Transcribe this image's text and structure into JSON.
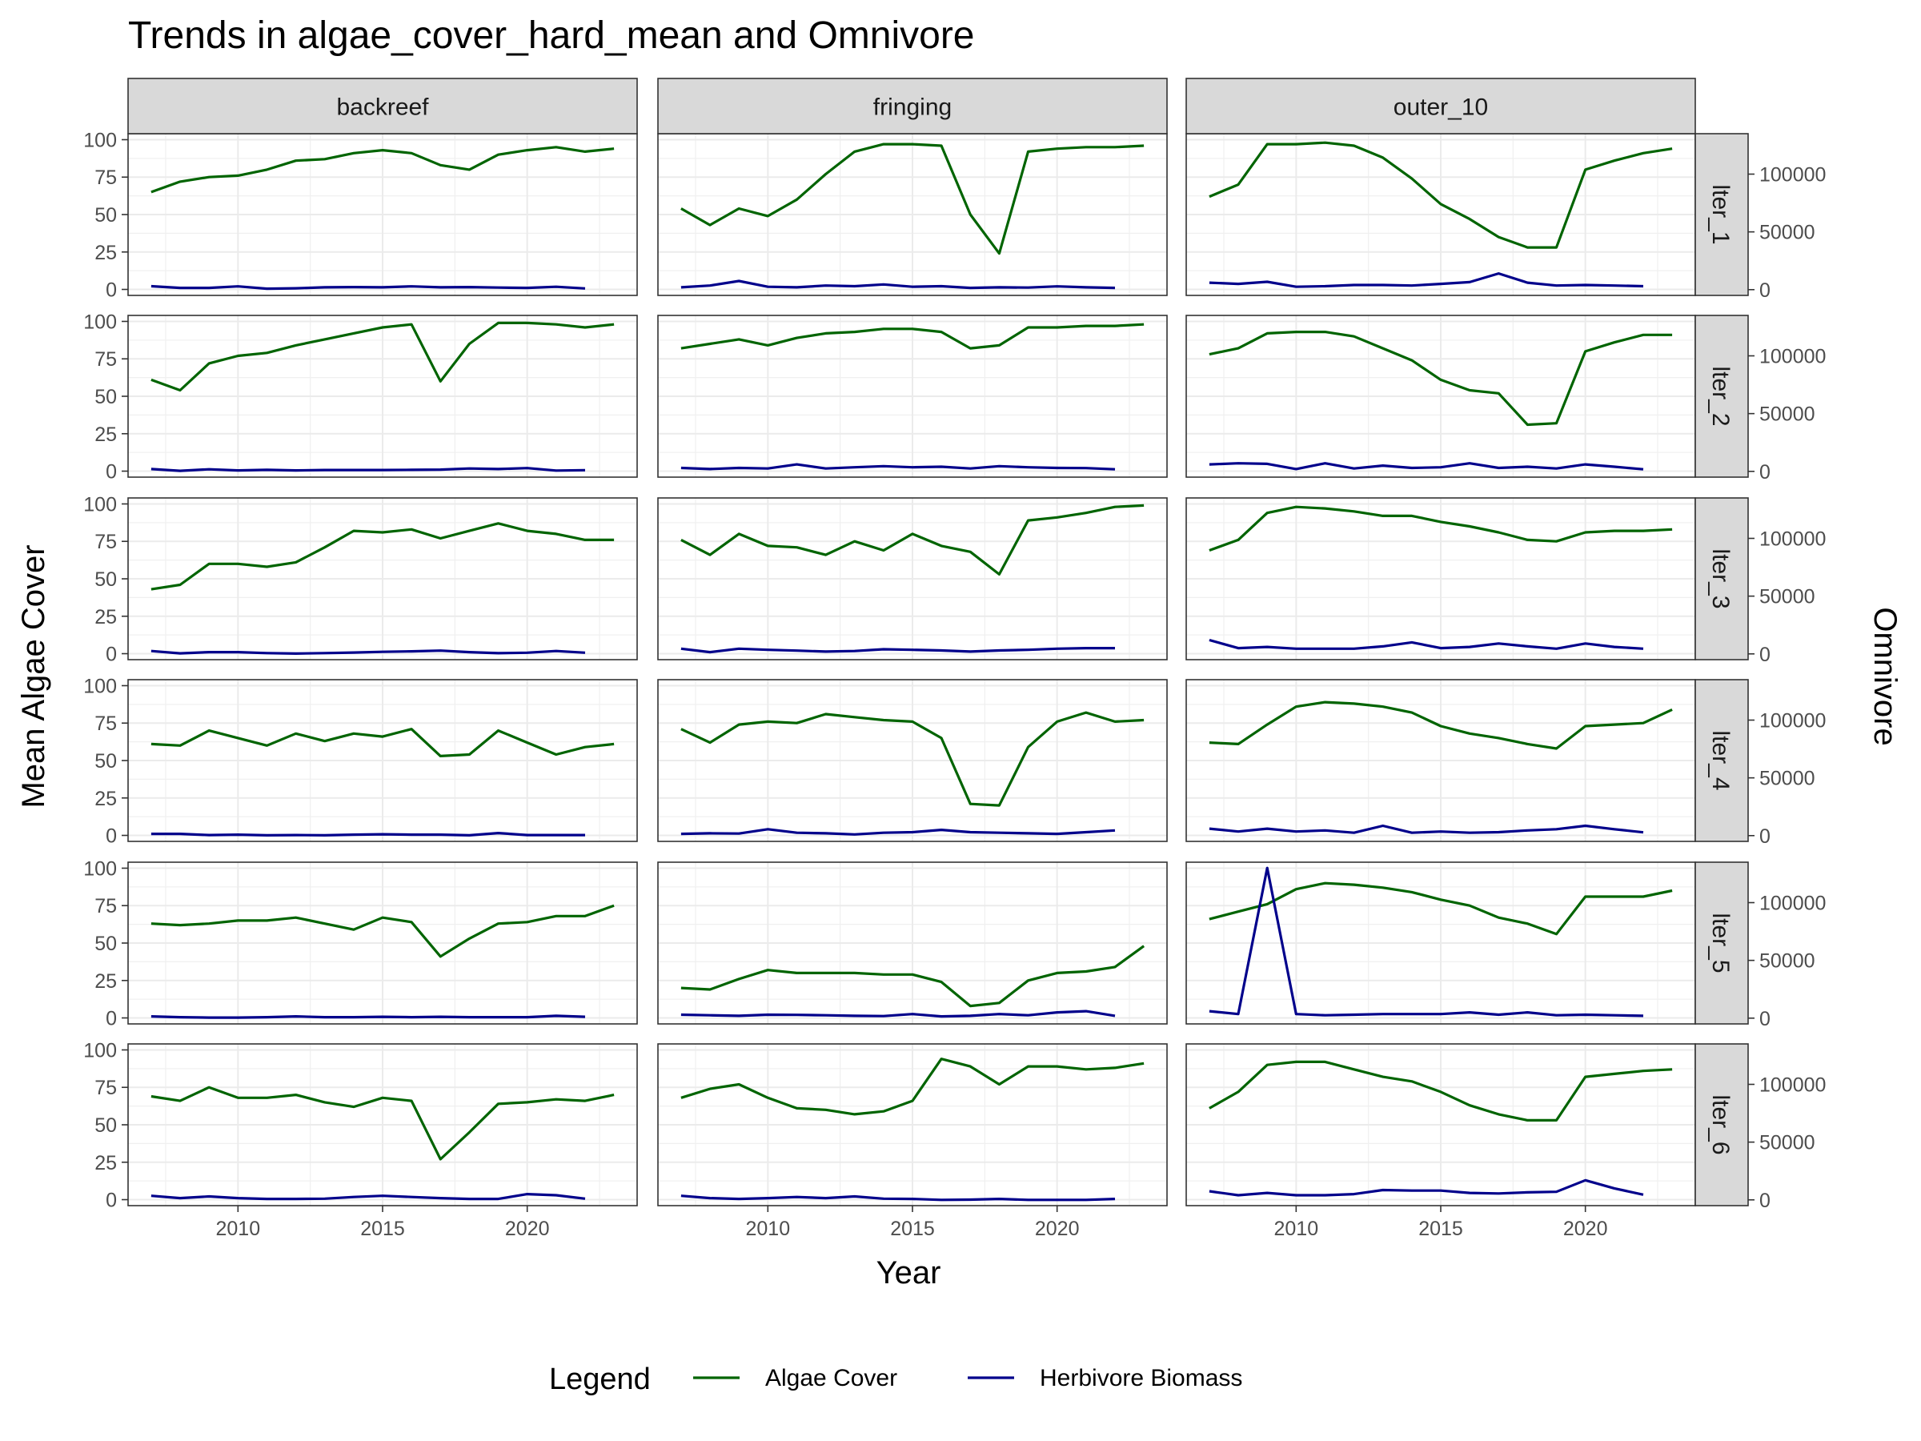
{
  "chart_data": {
    "type": "line",
    "title": "Trends in algae_cover_hard_mean and Omnivore",
    "xlabel": "Year",
    "ylabel_left": "Mean Algae Cover",
    "ylabel_right": "Omnivore",
    "legend_title": "Legend",
    "legend_position": "bottom",
    "grid": true,
    "xlim": [
      2006.2,
      2023.8
    ],
    "ylim_left": [
      -4,
      104
    ],
    "ylim_right": [
      -5000,
      135000
    ],
    "x_ticks": [
      2010,
      2015,
      2020
    ],
    "y_ticks_left": [
      0,
      25,
      50,
      75,
      100
    ],
    "y_ticks_right": [
      0,
      50000,
      100000
    ],
    "y_ticks_right_labels": [
      "0",
      "50000",
      "100000"
    ],
    "columns": [
      "backreef",
      "fringing",
      "outer_10"
    ],
    "rows": [
      "lter_1",
      "lter_2",
      "lter_3",
      "lter_4",
      "lter_5",
      "lter_6"
    ],
    "series": [
      {
        "name": "Algae Cover",
        "color": "#006400"
      },
      {
        "name": "Herbivore Biomass",
        "color": "#00008B"
      }
    ],
    "algae_years": [
      2007,
      2008,
      2009,
      2010,
      2011,
      2012,
      2013,
      2014,
      2015,
      2016,
      2017,
      2018,
      2019,
      2020,
      2021,
      2022,
      2023
    ],
    "herbivore_years": [
      2007,
      2008,
      2009,
      2010,
      2011,
      2012,
      2013,
      2014,
      2015,
      2016,
      2017,
      2018,
      2019,
      2020,
      2021,
      2022
    ],
    "panels": [
      {
        "row": "lter_1",
        "col": "backreef",
        "algae": [
          65,
          72,
          75,
          76,
          80,
          86,
          87,
          91,
          93,
          91,
          83,
          80,
          90,
          93,
          95,
          92,
          94
        ],
        "herbivore": [
          3000,
          1500,
          1500,
          2800,
          800,
          1200,
          2000,
          2200,
          2000,
          2800,
          2000,
          2200,
          1800,
          1500,
          2500,
          1000
        ]
      },
      {
        "row": "lter_1",
        "col": "fringing",
        "algae": [
          54,
          43,
          54,
          49,
          60,
          77,
          92,
          97,
          97,
          96,
          50,
          24,
          92,
          94,
          95,
          95,
          96
        ],
        "herbivore": [
          2000,
          3500,
          7500,
          2500,
          2000,
          3500,
          3000,
          4500,
          2500,
          3000,
          1500,
          2000,
          1800,
          2800,
          2000,
          1500
        ]
      },
      {
        "row": "lter_1",
        "col": "outer_10",
        "algae": [
          62,
          70,
          97,
          97,
          98,
          96,
          88,
          74,
          57,
          47,
          35,
          28,
          28,
          80,
          86,
          91,
          94
        ],
        "herbivore": [
          6000,
          5000,
          6800,
          2500,
          3000,
          4000,
          4000,
          3500,
          5000,
          6500,
          14000,
          6000,
          3500,
          4000,
          3500,
          3000
        ]
      },
      {
        "row": "lter_2",
        "col": "backreef",
        "algae": [
          61,
          54,
          72,
          77,
          79,
          84,
          88,
          92,
          96,
          98,
          60,
          85,
          99,
          99,
          98,
          96,
          98
        ],
        "herbivore": [
          2000,
          500,
          1800,
          800,
          1300,
          800,
          1200,
          1200,
          1200,
          1300,
          1500,
          2500,
          2000,
          2800,
          700,
          1000
        ]
      },
      {
        "row": "lter_2",
        "col": "fringing",
        "algae": [
          82,
          85,
          88,
          84,
          89,
          92,
          93,
          95,
          95,
          93,
          82,
          84,
          96,
          96,
          97,
          97,
          98
        ],
        "herbivore": [
          3000,
          2000,
          3000,
          2500,
          6000,
          2500,
          3500,
          4500,
          3500,
          4000,
          2500,
          4500,
          3500,
          3000,
          2800,
          1800
        ]
      },
      {
        "row": "lter_2",
        "col": "outer_10",
        "algae": [
          78,
          82,
          92,
          93,
          93,
          90,
          82,
          74,
          61,
          54,
          52,
          31,
          32,
          80,
          86,
          91,
          91
        ],
        "herbivore": [
          6000,
          7000,
          6500,
          2000,
          7000,
          2500,
          5000,
          3000,
          3500,
          7000,
          3000,
          4000,
          2500,
          6000,
          4000,
          1800
        ]
      },
      {
        "row": "lter_3",
        "col": "backreef",
        "algae": [
          43,
          46,
          60,
          60,
          58,
          61,
          71,
          82,
          81,
          83,
          77,
          82,
          87,
          82,
          80,
          76,
          76
        ],
        "herbivore": [
          2500,
          500,
          1500,
          1500,
          700,
          300,
          700,
          1200,
          1800,
          2200,
          2800,
          1500,
          600,
          1000,
          2500,
          1000
        ]
      },
      {
        "row": "lter_3",
        "col": "fringing",
        "algae": [
          76,
          66,
          80,
          72,
          71,
          66,
          75,
          69,
          80,
          72,
          68,
          53,
          89,
          91,
          94,
          98,
          99
        ],
        "herbivore": [
          4500,
          1500,
          4500,
          3500,
          2800,
          2000,
          2500,
          4000,
          3500,
          3000,
          2000,
          3000,
          3500,
          4500,
          5000,
          5000
        ]
      },
      {
        "row": "lter_3",
        "col": "outer_10",
        "algae": [
          69,
          76,
          94,
          98,
          97,
          95,
          92,
          92,
          88,
          85,
          81,
          76,
          75,
          81,
          82,
          82,
          83
        ],
        "herbivore": [
          12000,
          5000,
          6000,
          4500,
          4500,
          4500,
          6500,
          10000,
          5000,
          6000,
          9000,
          6500,
          4500,
          9000,
          6000,
          4500
        ]
      },
      {
        "row": "lter_4",
        "col": "backreef",
        "algae": [
          61,
          60,
          70,
          65,
          60,
          68,
          63,
          68,
          66,
          71,
          53,
          54,
          70,
          62,
          54,
          59,
          61
        ],
        "herbivore": [
          1500,
          1500,
          500,
          800,
          300,
          500,
          300,
          800,
          1200,
          800,
          800,
          300,
          2200,
          500,
          500,
          500
        ]
      },
      {
        "row": "lter_4",
        "col": "fringing",
        "algae": [
          71,
          62,
          74,
          76,
          75,
          81,
          79,
          77,
          76,
          65,
          21,
          20,
          59,
          76,
          82,
          76,
          77
        ],
        "herbivore": [
          1500,
          2000,
          1800,
          5500,
          2500,
          2000,
          1000,
          2500,
          3000,
          5000,
          3000,
          2500,
          2000,
          1500,
          3000,
          4500
        ]
      },
      {
        "row": "lter_4",
        "col": "outer_10",
        "algae": [
          62,
          61,
          74,
          86,
          89,
          88,
          86,
          82,
          73,
          68,
          65,
          61,
          58,
          73,
          74,
          75,
          84
        ],
        "herbivore": [
          6000,
          3500,
          6000,
          3500,
          4500,
          2500,
          8500,
          2500,
          3500,
          2500,
          3000,
          4500,
          5500,
          8500,
          5500,
          2800
        ]
      },
      {
        "row": "lter_5",
        "col": "backreef",
        "algae": [
          63,
          62,
          63,
          65,
          65,
          67,
          63,
          59,
          67,
          64,
          41,
          53,
          63,
          64,
          68,
          68,
          75
        ],
        "herbivore": [
          1500,
          800,
          500,
          500,
          800,
          1500,
          800,
          800,
          1200,
          800,
          1200,
          800,
          800,
          800,
          2000,
          1200
        ]
      },
      {
        "row": "lter_5",
        "col": "fringing",
        "algae": [
          20,
          19,
          26,
          32,
          30,
          30,
          30,
          29,
          29,
          24,
          8,
          10,
          25,
          30,
          31,
          34,
          48
        ],
        "herbivore": [
          3000,
          2500,
          2000,
          3000,
          2800,
          2500,
          2000,
          1800,
          3500,
          1500,
          2000,
          3500,
          2500,
          5000,
          6000,
          2000
        ]
      },
      {
        "row": "lter_5",
        "col": "outer_10",
        "algae": [
          66,
          71,
          76,
          86,
          90,
          89,
          87,
          84,
          79,
          75,
          67,
          63,
          56,
          81,
          81,
          81,
          85
        ],
        "herbivore": [
          6000,
          3500,
          130000,
          3500,
          2500,
          3000,
          3500,
          3500,
          3500,
          5000,
          3000,
          5000,
          2500,
          3000,
          2500,
          2000
        ]
      },
      {
        "row": "lter_6",
        "col": "backreef",
        "algae": [
          69,
          66,
          75,
          68,
          68,
          70,
          65,
          62,
          68,
          66,
          27,
          45,
          64,
          65,
          67,
          66,
          70
        ],
        "herbivore": [
          3500,
          1500,
          3000,
          1500,
          800,
          800,
          1000,
          2500,
          3500,
          2500,
          1500,
          800,
          800,
          5000,
          4000,
          1000
        ]
      },
      {
        "row": "lter_6",
        "col": "fringing",
        "algae": [
          68,
          74,
          77,
          68,
          61,
          60,
          57,
          59,
          66,
          94,
          89,
          77,
          89,
          89,
          87,
          88,
          91
        ],
        "herbivore": [
          3500,
          1500,
          800,
          1500,
          2500,
          1500,
          3000,
          1000,
          800,
          0,
          200,
          800,
          0,
          0,
          0,
          800
        ]
      },
      {
        "row": "lter_6",
        "col": "outer_10",
        "algae": [
          61,
          72,
          90,
          92,
          92,
          87,
          82,
          79,
          72,
          63,
          57,
          53,
          53,
          82,
          84,
          86,
          87
        ],
        "herbivore": [
          7500,
          4000,
          6000,
          4000,
          4000,
          5000,
          8500,
          8000,
          8000,
          6000,
          5500,
          6500,
          7000,
          17000,
          10000,
          4500
        ]
      }
    ]
  }
}
